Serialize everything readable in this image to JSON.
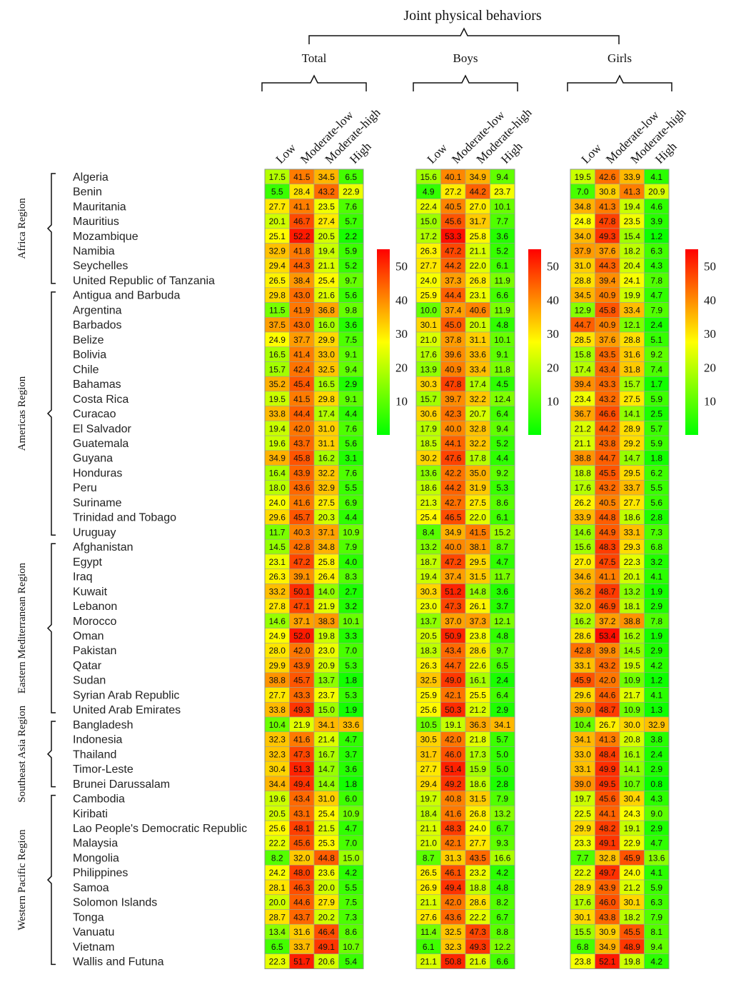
{
  "title": "Joint physical behaviors",
  "panels": [
    "Total",
    "Boys",
    "Girls"
  ],
  "columns": [
    "Low",
    "Moderate-low",
    "Moderate-high",
    "High"
  ],
  "colorbar_ticks": [
    "50",
    "40",
    "30",
    "20",
    "10"
  ],
  "colors": {
    "low": "#00ff00",
    "mid": "#ffff00",
    "high": "#ff0000"
  },
  "regions": [
    {
      "name": "Africa Region",
      "count": 8
    },
    {
      "name": "Americas Region",
      "count": 17
    },
    {
      "name": "Eastern Mediterranean Region",
      "count": 12
    },
    {
      "name": "Southeast Asia Region",
      "count": 5
    },
    {
      "name": "Western Pacific Region",
      "count": 12
    }
  ],
  "chart_data": {
    "type": "heatmap",
    "title": "Joint physical behaviors",
    "value_range": [
      0,
      55
    ],
    "rows": [
      {
        "country": "Algeria",
        "total": [
          17.5,
          41.5,
          34.5,
          6.5
        ],
        "boys": [
          15.6,
          40.1,
          34.9,
          9.4
        ],
        "girls": [
          19.5,
          42.6,
          33.9,
          4.1
        ]
      },
      {
        "country": "Benin",
        "total": [
          5.5,
          28.4,
          43.2,
          22.9
        ],
        "boys": [
          4.9,
          27.2,
          44.2,
          23.7
        ],
        "girls": [
          7.0,
          30.8,
          41.3,
          20.9
        ]
      },
      {
        "country": "Mauritania",
        "total": [
          27.7,
          41.1,
          23.5,
          7.6
        ],
        "boys": [
          22.4,
          40.5,
          27.0,
          10.1
        ],
        "girls": [
          34.8,
          41.3,
          19.4,
          4.6
        ]
      },
      {
        "country": "Mauritius",
        "total": [
          20.1,
          46.7,
          27.4,
          5.7
        ],
        "boys": [
          15.0,
          45.6,
          31.7,
          7.7
        ],
        "girls": [
          24.8,
          47.8,
          23.5,
          3.9
        ]
      },
      {
        "country": "Mozambique",
        "total": [
          25.1,
          52.2,
          20.5,
          2.2
        ],
        "boys": [
          17.2,
          53.3,
          25.8,
          3.6
        ],
        "girls": [
          34.0,
          49.3,
          15.4,
          1.2
        ]
      },
      {
        "country": "Namibia",
        "total": [
          32.9,
          41.8,
          19.4,
          5.9
        ],
        "boys": [
          26.3,
          47.2,
          21.1,
          5.2
        ],
        "girls": [
          37.9,
          37.6,
          18.2,
          6.3
        ]
      },
      {
        "country": "Seychelles",
        "total": [
          29.4,
          44.3,
          21.1,
          5.2
        ],
        "boys": [
          27.7,
          44.2,
          22.0,
          6.1
        ],
        "girls": [
          31.0,
          44.3,
          20.4,
          4.3
        ]
      },
      {
        "country": "United Republic of Tanzania",
        "total": [
          26.5,
          38.4,
          25.4,
          9.7
        ],
        "boys": [
          24.0,
          37.3,
          26.8,
          11.9
        ],
        "girls": [
          28.8,
          39.4,
          24.1,
          7.8
        ]
      },
      {
        "country": "Antigua and Barbuda",
        "total": [
          29.8,
          43.0,
          21.6,
          5.6
        ],
        "boys": [
          25.9,
          44.4,
          23.1,
          6.6
        ],
        "girls": [
          34.5,
          40.9,
          19.9,
          4.7
        ]
      },
      {
        "country": "Argentina",
        "total": [
          11.5,
          41.9,
          36.8,
          9.8
        ],
        "boys": [
          10.0,
          37.4,
          40.6,
          11.9
        ],
        "girls": [
          12.9,
          45.8,
          33.4,
          7.9
        ]
      },
      {
        "country": "Barbados",
        "total": [
          37.5,
          43.0,
          16.0,
          3.6
        ],
        "boys": [
          30.1,
          45.0,
          20.1,
          4.8
        ],
        "girls": [
          44.7,
          40.9,
          12.1,
          2.4
        ]
      },
      {
        "country": "Belize",
        "total": [
          24.9,
          37.7,
          29.9,
          7.5
        ],
        "boys": [
          21.0,
          37.8,
          31.1,
          10.1
        ],
        "girls": [
          28.5,
          37.6,
          28.8,
          5.1
        ]
      },
      {
        "country": "Bolivia",
        "total": [
          16.5,
          41.4,
          33.0,
          9.1
        ],
        "boys": [
          17.6,
          39.6,
          33.6,
          9.1
        ],
        "girls": [
          15.8,
          43.5,
          31.6,
          9.2
        ]
      },
      {
        "country": "Chile",
        "total": [
          15.7,
          42.4,
          32.5,
          9.4
        ],
        "boys": [
          13.9,
          40.9,
          33.4,
          11.8
        ],
        "girls": [
          17.4,
          43.4,
          31.8,
          7.4
        ]
      },
      {
        "country": "Bahamas",
        "total": [
          35.2,
          45.4,
          16.5,
          2.9
        ],
        "boys": [
          30.3,
          47.8,
          17.4,
          4.5
        ],
        "girls": [
          39.4,
          43.3,
          15.7,
          1.7
        ]
      },
      {
        "country": "Costa Rica",
        "total": [
          19.5,
          41.5,
          29.8,
          9.1
        ],
        "boys": [
          15.7,
          39.7,
          32.2,
          12.4
        ],
        "girls": [
          23.4,
          43.2,
          27.5,
          5.9
        ]
      },
      {
        "country": "Curacao",
        "total": [
          33.8,
          44.4,
          17.4,
          4.4
        ],
        "boys": [
          30.6,
          42.3,
          20.7,
          6.4
        ],
        "girls": [
          36.7,
          46.6,
          14.1,
          2.5
        ]
      },
      {
        "country": "El Salvador",
        "total": [
          19.4,
          42.0,
          31.0,
          7.6
        ],
        "boys": [
          17.9,
          40.0,
          32.8,
          9.4
        ],
        "girls": [
          21.2,
          44.2,
          28.9,
          5.7
        ]
      },
      {
        "country": "Guatemala",
        "total": [
          19.6,
          43.7,
          31.1,
          5.6
        ],
        "boys": [
          18.5,
          44.1,
          32.2,
          5.2
        ],
        "girls": [
          21.1,
          43.8,
          29.2,
          5.9
        ]
      },
      {
        "country": "Guyana",
        "total": [
          34.9,
          45.8,
          16.2,
          3.1
        ],
        "boys": [
          30.2,
          47.6,
          17.8,
          4.4
        ],
        "girls": [
          38.8,
          44.7,
          14.7,
          1.8
        ]
      },
      {
        "country": "Honduras",
        "total": [
          16.4,
          43.9,
          32.2,
          7.6
        ],
        "boys": [
          13.6,
          42.2,
          35.0,
          9.2
        ],
        "girls": [
          18.8,
          45.5,
          29.5,
          6.2
        ]
      },
      {
        "country": "Peru",
        "total": [
          18.0,
          43.6,
          32.9,
          5.5
        ],
        "boys": [
          18.6,
          44.2,
          31.9,
          5.3
        ],
        "girls": [
          17.6,
          43.2,
          33.7,
          5.5
        ]
      },
      {
        "country": "Suriname",
        "total": [
          24.0,
          41.6,
          27.5,
          6.9
        ],
        "boys": [
          21.3,
          42.7,
          27.5,
          8.6
        ],
        "girls": [
          26.2,
          40.5,
          27.7,
          5.6
        ]
      },
      {
        "country": "Trinidad and Tobago",
        "total": [
          29.6,
          45.7,
          20.3,
          4.4
        ],
        "boys": [
          25.4,
          46.5,
          22.0,
          6.1
        ],
        "girls": [
          33.9,
          44.8,
          18.6,
          2.8
        ]
      },
      {
        "country": "Uruguay",
        "total": [
          11.7,
          40.3,
          37.1,
          10.9
        ],
        "boys": [
          8.4,
          34.9,
          41.5,
          15.2
        ],
        "girls": [
          14.6,
          44.9,
          33.1,
          7.3
        ]
      },
      {
        "country": "Afghanistan",
        "total": [
          14.5,
          42.8,
          34.8,
          7.9
        ],
        "boys": [
          13.2,
          40.0,
          38.1,
          8.7
        ],
        "girls": [
          15.6,
          48.3,
          29.3,
          6.8
        ]
      },
      {
        "country": "Egypt",
        "total": [
          23.1,
          47.2,
          25.8,
          4.0
        ],
        "boys": [
          18.7,
          47.2,
          29.5,
          4.7
        ],
        "girls": [
          27.0,
          47.5,
          22.3,
          3.2
        ]
      },
      {
        "country": "Iraq",
        "total": [
          26.3,
          39.1,
          26.4,
          8.3
        ],
        "boys": [
          19.4,
          37.4,
          31.5,
          11.7
        ],
        "girls": [
          34.6,
          41.1,
          20.1,
          4.1
        ]
      },
      {
        "country": "Kuwait",
        "total": [
          33.2,
          50.1,
          14.0,
          2.7
        ],
        "boys": [
          30.3,
          51.2,
          14.8,
          3.6
        ],
        "girls": [
          36.2,
          48.7,
          13.2,
          1.9
        ]
      },
      {
        "country": "Lebanon",
        "total": [
          27.8,
          47.1,
          21.9,
          3.2
        ],
        "boys": [
          23.0,
          47.3,
          26.1,
          3.7
        ],
        "girls": [
          32.0,
          46.9,
          18.1,
          2.9
        ]
      },
      {
        "country": "Morocco",
        "total": [
          14.6,
          37.1,
          38.3,
          10.1
        ],
        "boys": [
          13.7,
          37.0,
          37.3,
          12.1
        ],
        "girls": [
          16.2,
          37.2,
          38.8,
          7.8
        ]
      },
      {
        "country": "Oman",
        "total": [
          24.9,
          52.0,
          19.8,
          3.3
        ],
        "boys": [
          20.5,
          50.9,
          23.8,
          4.8
        ],
        "girls": [
          28.6,
          53.4,
          16.2,
          1.9
        ]
      },
      {
        "country": "Pakistan",
        "total": [
          28.0,
          42.0,
          23.0,
          7.0
        ],
        "boys": [
          18.3,
          43.4,
          28.6,
          9.7
        ],
        "girls": [
          42.8,
          39.8,
          14.5,
          2.9
        ]
      },
      {
        "country": "Qatar",
        "total": [
          29.9,
          43.9,
          20.9,
          5.3
        ],
        "boys": [
          26.3,
          44.7,
          22.6,
          6.5
        ],
        "girls": [
          33.1,
          43.2,
          19.5,
          4.2
        ]
      },
      {
        "country": "Sudan",
        "total": [
          38.8,
          45.7,
          13.7,
          1.8
        ],
        "boys": [
          32.5,
          49.0,
          16.1,
          2.4
        ],
        "girls": [
          45.9,
          42.0,
          10.9,
          1.2
        ]
      },
      {
        "country": "Syrian Arab Republic",
        "total": [
          27.7,
          43.3,
          23.7,
          5.3
        ],
        "boys": [
          25.9,
          42.1,
          25.5,
          6.4
        ],
        "girls": [
          29.6,
          44.6,
          21.7,
          4.1
        ]
      },
      {
        "country": "United Arab Emirates",
        "total": [
          33.8,
          49.3,
          15.0,
          1.9
        ],
        "boys": [
          25.6,
          50.3,
          21.2,
          2.9
        ],
        "girls": [
          39.0,
          48.7,
          10.9,
          1.3
        ]
      },
      {
        "country": "Bangladesh",
        "total": [
          10.4,
          21.9,
          34.1,
          33.6
        ],
        "boys": [
          10.5,
          19.1,
          36.3,
          34.1
        ],
        "girls": [
          10.4,
          26.7,
          30.0,
          32.9
        ]
      },
      {
        "country": "Indonesia",
        "total": [
          32.3,
          41.6,
          21.4,
          4.7
        ],
        "boys": [
          30.5,
          42.0,
          21.8,
          5.7
        ],
        "girls": [
          34.1,
          41.3,
          20.8,
          3.8
        ]
      },
      {
        "country": "Thailand",
        "total": [
          32.3,
          47.3,
          16.7,
          3.7
        ],
        "boys": [
          31.7,
          46.0,
          17.3,
          5.0
        ],
        "girls": [
          33.0,
          48.4,
          16.1,
          2.4
        ]
      },
      {
        "country": "Timor-Leste",
        "total": [
          30.4,
          51.3,
          14.7,
          3.6
        ],
        "boys": [
          27.7,
          51.4,
          15.9,
          5.0
        ],
        "girls": [
          33.1,
          49.9,
          14.1,
          2.9
        ]
      },
      {
        "country": "Brunei Darussalam",
        "total": [
          34.4,
          49.4,
          14.4,
          1.8
        ],
        "boys": [
          29.4,
          49.2,
          18.6,
          2.8
        ],
        "girls": [
          39.0,
          49.5,
          10.7,
          0.8
        ]
      },
      {
        "country": "Cambodia",
        "total": [
          19.6,
          43.4,
          31.0,
          6.0
        ],
        "boys": [
          19.7,
          40.8,
          31.5,
          7.9
        ],
        "girls": [
          19.7,
          45.6,
          30.4,
          4.3
        ]
      },
      {
        "country": "Kiribati",
        "total": [
          20.5,
          43.1,
          25.4,
          10.9
        ],
        "boys": [
          18.4,
          41.6,
          26.8,
          13.2
        ],
        "girls": [
          22.5,
          44.1,
          24.3,
          9.0
        ]
      },
      {
        "country": "Lao People's Democratic Republic",
        "total": [
          25.6,
          48.1,
          21.5,
          4.7
        ],
        "boys": [
          21.1,
          48.3,
          24.0,
          6.7
        ],
        "girls": [
          29.9,
          48.2,
          19.1,
          2.9
        ]
      },
      {
        "country": "Malaysia",
        "total": [
          22.2,
          45.6,
          25.3,
          7.0
        ],
        "boys": [
          21.0,
          42.1,
          27.7,
          9.3
        ],
        "girls": [
          23.3,
          49.1,
          22.9,
          4.7
        ]
      },
      {
        "country": "Mongolia",
        "total": [
          8.2,
          32.0,
          44.8,
          15.0
        ],
        "boys": [
          8.7,
          31.3,
          43.5,
          16.6
        ],
        "girls": [
          7.7,
          32.8,
          45.9,
          13.6
        ]
      },
      {
        "country": "Philippines",
        "total": [
          24.2,
          48.0,
          23.6,
          4.2
        ],
        "boys": [
          26.5,
          46.1,
          23.2,
          4.2
        ],
        "girls": [
          22.2,
          49.7,
          24.0,
          4.1
        ]
      },
      {
        "country": "Samoa",
        "total": [
          28.1,
          46.3,
          20.0,
          5.5
        ],
        "boys": [
          26.9,
          49.4,
          18.8,
          4.8
        ],
        "girls": [
          28.9,
          43.9,
          21.2,
          5.9
        ]
      },
      {
        "country": "Solomon Islands",
        "total": [
          20.0,
          44.6,
          27.9,
          7.5
        ],
        "boys": [
          21.1,
          42.0,
          28.6,
          8.2
        ],
        "girls": [
          17.6,
          46.0,
          30.1,
          6.3
        ]
      },
      {
        "country": "Tonga",
        "total": [
          28.7,
          43.7,
          20.2,
          7.3
        ],
        "boys": [
          27.6,
          43.6,
          22.2,
          6.7
        ],
        "girls": [
          30.1,
          43.8,
          18.2,
          7.9
        ]
      },
      {
        "country": "Vanuatu",
        "total": [
          13.4,
          31.6,
          46.4,
          8.6
        ],
        "boys": [
          11.4,
          32.5,
          47.3,
          8.8
        ],
        "girls": [
          15.5,
          30.9,
          45.5,
          8.1
        ]
      },
      {
        "country": "Vietnam",
        "total": [
          6.5,
          33.7,
          49.1,
          10.7
        ],
        "boys": [
          6.1,
          32.3,
          49.3,
          12.2
        ],
        "girls": [
          6.8,
          34.9,
          48.9,
          9.4
        ]
      },
      {
        "country": "Wallis and Futuna",
        "total": [
          22.3,
          51.7,
          20.6,
          5.4
        ],
        "boys": [
          21.1,
          50.8,
          21.6,
          6.6
        ],
        "girls": [
          23.8,
          52.1,
          19.8,
          4.2
        ]
      }
    ]
  }
}
